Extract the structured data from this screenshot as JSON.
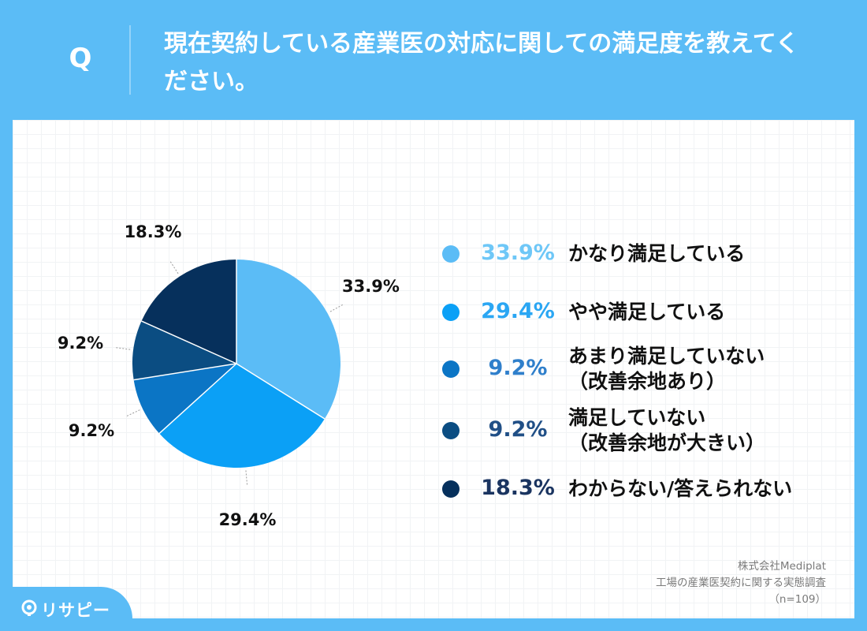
{
  "header": {
    "q_mark": "Q",
    "question": "現在契約している産業医の対応に関しての満足度を教えてください。"
  },
  "chart_data": {
    "type": "pie",
    "title": "現在契約している産業医の対応に関しての満足度を教えてください。",
    "slices": [
      {
        "label": "かなり満足している",
        "value": 33.9,
        "value_label": "33.9%",
        "color": "#5bbcf6"
      },
      {
        "label": "やや満足している",
        "value": 29.4,
        "value_label": "29.4%",
        "color": "#0ba0f6"
      },
      {
        "label": "あまり満足していない\n（改善余地あり）",
        "value": 9.2,
        "value_label": "9.2%",
        "color": "#0b75c5"
      },
      {
        "label": "満足していない\n（改善余地が大きい）",
        "value": 9.2,
        "value_label": "9.2%",
        "color": "#0b4d82"
      },
      {
        "label": "わからない/答えられない",
        "value": 18.3,
        "value_label": "18.3%",
        "color": "#06305c"
      }
    ],
    "legend_pct_colors": [
      "#6ec7f7",
      "#2aa6f3",
      "#2f7fcb",
      "#204f86",
      "#1a3460"
    ],
    "legend_placement": "right"
  },
  "source": {
    "company": "株式会社Mediplat",
    "survey": "工場の産業医契約に関する実態調査",
    "n": "（n=109）"
  },
  "brand": {
    "name": "リサピー"
  }
}
